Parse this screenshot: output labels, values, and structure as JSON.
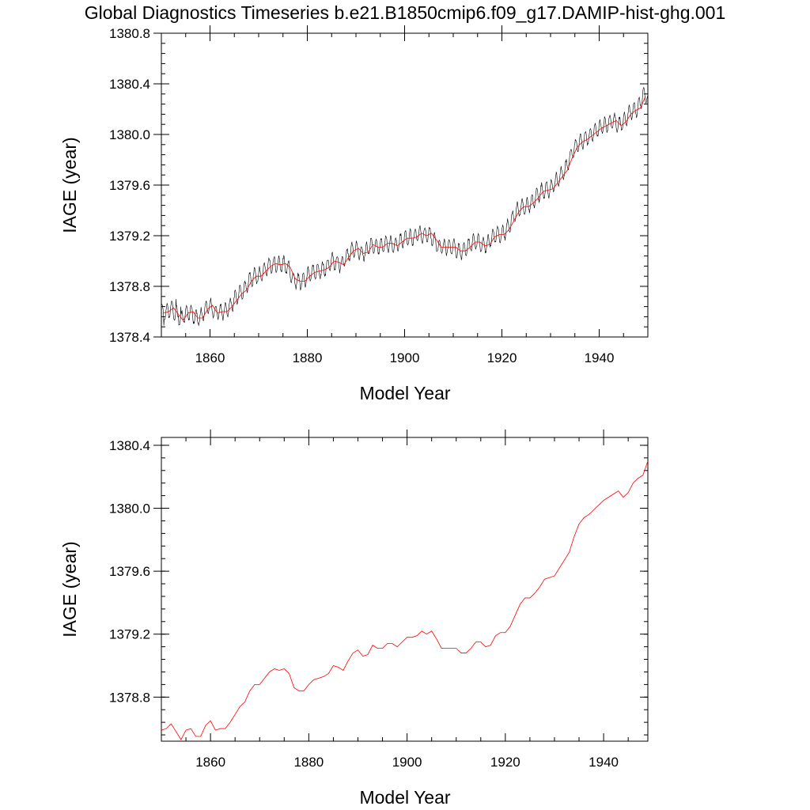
{
  "title": "Global Diagnostics Timeseries b.e21.B1850cmip6.f09_g17.DAMIP-hist-ghg.001",
  "chart_data": [
    {
      "type": "line",
      "xlabel": "Model Year",
      "ylabel": "IAGE (year)",
      "xlim": [
        1850,
        1950
      ],
      "ylim": [
        1378.4,
        1380.8
      ],
      "xticks": [
        1860,
        1880,
        1900,
        1920,
        1940
      ],
      "yticks": [
        1378.4,
        1378.8,
        1379.2,
        1379.6,
        1380.0,
        1380.4,
        1380.8
      ],
      "ytick_labels": [
        "1378.4",
        "1378.8",
        "1379.2",
        "1379.6",
        "1380.0",
        "1380.4",
        "1380.8"
      ],
      "grid": false,
      "series": [
        {
          "color": "#000000",
          "resolution": "monthly",
          "seasonal_amplitude": 0.06,
          "x": [
            1850.0,
            1850.5,
            1851.0,
            1851.5,
            1852.0,
            1852.5,
            1853.0,
            1853.5,
            1854.0,
            1854.5
          ],
          "y": [
            1378.67,
            1378.49,
            1378.62,
            1378.55,
            1378.66,
            1378.56,
            1378.7,
            1378.57,
            1378.64,
            1378.53
          ]
        },
        {
          "color": "#ff0000",
          "resolution": "annual",
          "x": [
            1850,
            1851,
            1852,
            1853,
            1854,
            1855,
            1856,
            1857,
            1858,
            1859,
            1860,
            1861,
            1862,
            1863,
            1864,
            1865,
            1866,
            1867,
            1868,
            1869,
            1870,
            1871,
            1872,
            1873,
            1874,
            1875,
            1876,
            1877,
            1878,
            1879,
            1880,
            1881,
            1882,
            1883,
            1884,
            1885,
            1886,
            1887,
            1888,
            1889,
            1890,
            1891,
            1892,
            1893,
            1894,
            1895,
            1896,
            1897,
            1898,
            1899,
            1900,
            1901,
            1902,
            1903,
            1904,
            1905,
            1906,
            1907,
            1908,
            1909,
            1910,
            1911,
            1912,
            1913,
            1914,
            1915,
            1916,
            1917,
            1918,
            1919,
            1920,
            1921,
            1922,
            1923,
            1924,
            1925,
            1926,
            1927,
            1928,
            1929,
            1930,
            1931,
            1932,
            1933,
            1934,
            1935,
            1936,
            1937,
            1938,
            1939,
            1940,
            1941,
            1942,
            1943,
            1944,
            1945,
            1946,
            1947,
            1948,
            1949
          ],
          "y": [
            1378.59,
            1378.6,
            1378.63,
            1378.58,
            1378.53,
            1378.59,
            1378.6,
            1378.55,
            1378.55,
            1378.62,
            1378.65,
            1378.59,
            1378.6,
            1378.6,
            1378.64,
            1378.69,
            1378.74,
            1378.77,
            1378.84,
            1378.88,
            1378.88,
            1378.92,
            1378.96,
            1378.98,
            1378.97,
            1378.98,
            1378.95,
            1378.86,
            1378.84,
            1378.84,
            1378.88,
            1378.91,
            1378.92,
            1378.93,
            1378.95,
            1379.0,
            1378.99,
            1378.97,
            1379.03,
            1379.08,
            1379.1,
            1379.06,
            1379.07,
            1379.13,
            1379.11,
            1379.11,
            1379.14,
            1379.14,
            1379.12,
            1379.15,
            1379.18,
            1379.18,
            1379.19,
            1379.22,
            1379.2,
            1379.22,
            1379.17,
            1379.11,
            1379.11,
            1379.11,
            1379.11,
            1379.08,
            1379.08,
            1379.11,
            1379.15,
            1379.15,
            1379.12,
            1379.13,
            1379.19,
            1379.21,
            1379.21,
            1379.25,
            1379.32,
            1379.39,
            1379.43,
            1379.43,
            1379.46,
            1379.5,
            1379.55,
            1379.56,
            1379.57,
            1379.62,
            1379.67,
            1379.72,
            1379.82,
            1379.9,
            1379.94,
            1379.96,
            1379.99,
            1380.02,
            1380.05,
            1380.07,
            1380.09,
            1380.11,
            1380.07,
            1380.1,
            1380.16,
            1380.19,
            1380.21,
            1380.3
          ]
        }
      ]
    },
    {
      "type": "line",
      "xlabel": "Model Year",
      "ylabel": "IAGE (year)",
      "xlim": [
        1850,
        1949
      ],
      "ylim": [
        1378.52,
        1380.45
      ],
      "xticks": [
        1860,
        1880,
        1900,
        1920,
        1940
      ],
      "yticks": [
        1378.8,
        1379.2,
        1379.6,
        1380.0,
        1380.4
      ],
      "ytick_labels": [
        "1378.8",
        "1379.2",
        "1379.6",
        "1380.0",
        "1380.4"
      ],
      "grid": false,
      "series": [
        {
          "color": "#ff0000",
          "resolution": "annual",
          "x": [
            1850,
            1851,
            1852,
            1853,
            1854,
            1855,
            1856,
            1857,
            1858,
            1859,
            1860,
            1861,
            1862,
            1863,
            1864,
            1865,
            1866,
            1867,
            1868,
            1869,
            1870,
            1871,
            1872,
            1873,
            1874,
            1875,
            1876,
            1877,
            1878,
            1879,
            1880,
            1881,
            1882,
            1883,
            1884,
            1885,
            1886,
            1887,
            1888,
            1889,
            1890,
            1891,
            1892,
            1893,
            1894,
            1895,
            1896,
            1897,
            1898,
            1899,
            1900,
            1901,
            1902,
            1903,
            1904,
            1905,
            1906,
            1907,
            1908,
            1909,
            1910,
            1911,
            1912,
            1913,
            1914,
            1915,
            1916,
            1917,
            1918,
            1919,
            1920,
            1921,
            1922,
            1923,
            1924,
            1925,
            1926,
            1927,
            1928,
            1929,
            1930,
            1931,
            1932,
            1933,
            1934,
            1935,
            1936,
            1937,
            1938,
            1939,
            1940,
            1941,
            1942,
            1943,
            1944,
            1945,
            1946,
            1947,
            1948,
            1949
          ],
          "y": [
            1378.59,
            1378.6,
            1378.63,
            1378.58,
            1378.53,
            1378.59,
            1378.6,
            1378.55,
            1378.55,
            1378.62,
            1378.65,
            1378.59,
            1378.6,
            1378.6,
            1378.64,
            1378.69,
            1378.74,
            1378.77,
            1378.84,
            1378.88,
            1378.88,
            1378.92,
            1378.96,
            1378.98,
            1378.97,
            1378.98,
            1378.95,
            1378.86,
            1378.84,
            1378.84,
            1378.88,
            1378.91,
            1378.92,
            1378.93,
            1378.95,
            1379.0,
            1378.99,
            1378.97,
            1379.03,
            1379.08,
            1379.1,
            1379.06,
            1379.07,
            1379.13,
            1379.11,
            1379.11,
            1379.14,
            1379.14,
            1379.12,
            1379.15,
            1379.18,
            1379.18,
            1379.19,
            1379.22,
            1379.2,
            1379.22,
            1379.17,
            1379.11,
            1379.11,
            1379.11,
            1379.11,
            1379.08,
            1379.08,
            1379.11,
            1379.15,
            1379.15,
            1379.12,
            1379.13,
            1379.19,
            1379.21,
            1379.21,
            1379.25,
            1379.32,
            1379.39,
            1379.43,
            1379.43,
            1379.46,
            1379.5,
            1379.55,
            1379.56,
            1379.57,
            1379.62,
            1379.67,
            1379.72,
            1379.82,
            1379.9,
            1379.94,
            1379.96,
            1379.99,
            1380.02,
            1380.05,
            1380.07,
            1380.09,
            1380.11,
            1380.07,
            1380.1,
            1380.16,
            1380.19,
            1380.21,
            1380.3
          ]
        }
      ]
    }
  ]
}
